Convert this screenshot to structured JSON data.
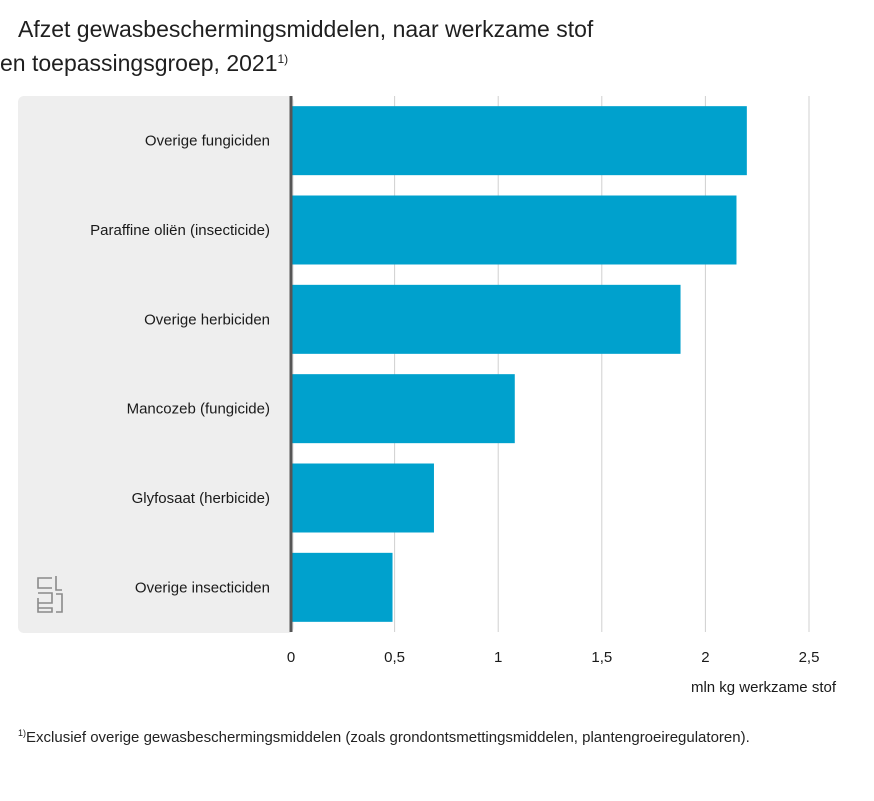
{
  "title": {
    "line1": "Afzet gewasbeschermingsmiddelen, naar werkzame stof",
    "line2": "en toepassingsgroep, 2021",
    "footnote_marker": "1)"
  },
  "footnote": {
    "marker": "1)",
    "text": "Exclusief overige gewasbeschermingsmiddelen (zoals grondontsmettingsmiddelen, plantengroeiregulatoren)."
  },
  "logo": {
    "icon": "cbs-logo-icon"
  },
  "colors": {
    "bar": "#00a1cd",
    "panel": "#eeeeee",
    "grid": "#d0d0d0",
    "axis": "#555555"
  },
  "chart_data": {
    "type": "bar",
    "orientation": "horizontal",
    "categories": [
      "Overige fungiciden",
      "Paraffine oliën (insecticide)",
      "Overige herbiciden",
      "Mancozeb (fungicide)",
      "Glyfosaat (herbicide)",
      "Overige insecticiden"
    ],
    "values": [
      2.2,
      2.15,
      1.88,
      1.08,
      0.69,
      0.49
    ],
    "xlabel": "mln kg werkzame stof",
    "xlim": [
      0,
      2.5
    ],
    "xticks": [
      0,
      0.5,
      1,
      1.5,
      2,
      2.5
    ],
    "xtick_labels": [
      "0",
      "0,5",
      "1",
      "1,5",
      "2",
      "2,5"
    ],
    "grid": true
  }
}
